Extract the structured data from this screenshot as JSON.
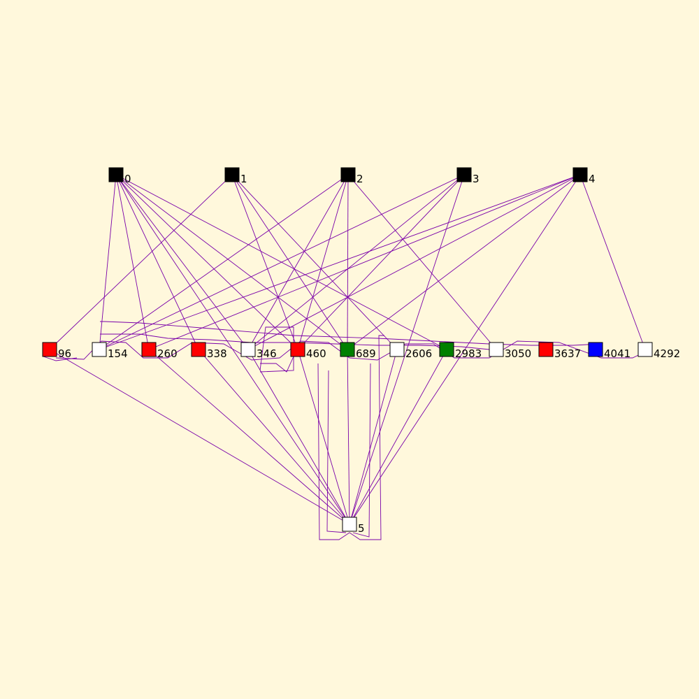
{
  "colors": {
    "background": "#fff8dc",
    "edge": "#7a00a8",
    "black": "#000000",
    "white": "#ffffff",
    "red": "#ff0000",
    "green": "#008000",
    "blue": "#0000ff"
  },
  "top_nodes": [
    {
      "id": "n0",
      "label": "0",
      "color": "black"
    },
    {
      "id": "n1",
      "label": "1",
      "color": "black"
    },
    {
      "id": "n2",
      "label": "2",
      "color": "black"
    },
    {
      "id": "n3",
      "label": "3",
      "color": "black"
    },
    {
      "id": "n4",
      "label": "4",
      "color": "black"
    }
  ],
  "middle_nodes": [
    {
      "id": "m96",
      "label": "96",
      "color": "red"
    },
    {
      "id": "m154",
      "label": "154",
      "color": "white"
    },
    {
      "id": "m260",
      "label": "260",
      "color": "red"
    },
    {
      "id": "m338",
      "label": "338",
      "color": "red"
    },
    {
      "id": "m346",
      "label": "346",
      "color": "white"
    },
    {
      "id": "m460",
      "label": "460",
      "color": "red"
    },
    {
      "id": "m689",
      "label": "689",
      "color": "green"
    },
    {
      "id": "m2606",
      "label": "2606",
      "color": "white"
    },
    {
      "id": "m2983",
      "label": "2983",
      "color": "green"
    },
    {
      "id": "m3050",
      "label": "3050",
      "color": "white"
    },
    {
      "id": "m3637",
      "label": "3637",
      "color": "red"
    },
    {
      "id": "m4041",
      "label": "4041",
      "color": "blue"
    },
    {
      "id": "m4292",
      "label": "4292",
      "color": "white"
    }
  ],
  "bottom_nodes": [
    {
      "id": "n5",
      "label": "5",
      "color": "white"
    }
  ],
  "edges": [
    [
      "n0",
      "m260"
    ],
    [
      "n0",
      "m338"
    ],
    [
      "n0",
      "m346"
    ],
    [
      "n0",
      "m460"
    ],
    [
      "n0",
      "m689"
    ],
    [
      "n0",
      "m2983"
    ],
    [
      "n0",
      "m5"
    ],
    [
      "n0",
      "m154"
    ],
    [
      "n1",
      "m96"
    ],
    [
      "n1",
      "m460"
    ],
    [
      "n1",
      "m2606"
    ],
    [
      "n1",
      "m689"
    ],
    [
      "n2",
      "m154"
    ],
    [
      "n2",
      "m346"
    ],
    [
      "n2",
      "m460"
    ],
    [
      "n2",
      "m689"
    ],
    [
      "n2",
      "m3050"
    ],
    [
      "n3",
      "m154"
    ],
    [
      "n3",
      "m346"
    ],
    [
      "n3",
      "m460"
    ],
    [
      "n3",
      "m5"
    ],
    [
      "n4",
      "m154"
    ],
    [
      "n4",
      "m260"
    ],
    [
      "n4",
      "m346"
    ],
    [
      "n4",
      "m689"
    ],
    [
      "n4",
      "m4292"
    ],
    [
      "n4",
      "m5"
    ],
    [
      "m96",
      "n5"
    ],
    [
      "m260",
      "n5"
    ],
    [
      "m338",
      "n5"
    ],
    [
      "m346",
      "n5"
    ],
    [
      "m460",
      "n5"
    ],
    [
      "m689",
      "n5"
    ],
    [
      "m2606",
      "n5"
    ],
    [
      "m2983",
      "n5"
    ]
  ]
}
